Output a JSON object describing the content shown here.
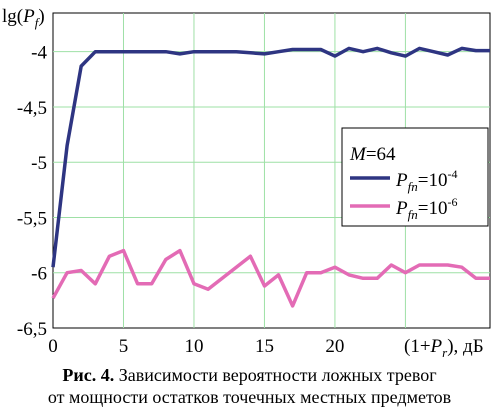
{
  "chart_data": {
    "type": "line",
    "ylabel": "lg(Pf)",
    "xlabel": "(1+Pr), дБ",
    "xlim": [
      0,
      31
    ],
    "ylim": [
      -6.5,
      -3.65
    ],
    "xticks": [
      "0",
      "5",
      "10",
      "15",
      "20"
    ],
    "yticks": [
      "-4",
      "-4,5",
      "-5",
      "-5,5",
      "-6",
      "-6,5"
    ],
    "grid": true,
    "legend": {
      "placement": "center-right",
      "title": "M=64"
    },
    "series": [
      {
        "name": "Pfn=10^-4",
        "color": "#2e3582",
        "x": [
          0,
          1,
          2,
          3,
          4,
          5,
          6,
          7,
          8,
          9,
          10,
          11,
          12,
          13,
          14,
          15,
          16,
          17,
          18,
          19,
          20,
          21,
          22,
          23,
          24,
          25,
          26,
          27,
          28,
          29,
          30,
          31
        ],
        "y": [
          -5.95,
          -4.85,
          -4.13,
          -4.0,
          -4.0,
          -4.0,
          -4.0,
          -4.0,
          -4.0,
          -4.02,
          -4.0,
          -4.0,
          -4.0,
          -4.0,
          -4.01,
          -4.02,
          -4.0,
          -3.98,
          -3.98,
          -3.98,
          -4.04,
          -3.97,
          -4.0,
          -3.97,
          -4.01,
          -4.04,
          -3.97,
          -4.0,
          -4.03,
          -3.97,
          -3.99,
          -3.99
        ]
      },
      {
        "name": "Pfn=10^-6",
        "color": "#e36bb5",
        "x": [
          0,
          1,
          2,
          3,
          4,
          5,
          6,
          7,
          8,
          9,
          10,
          11,
          12,
          13,
          14,
          15,
          16,
          17,
          18,
          19,
          20,
          21,
          22,
          23,
          24,
          25,
          26,
          27,
          28,
          29,
          30,
          31
        ],
        "y": [
          -6.23,
          -6.0,
          -5.98,
          -6.1,
          -5.85,
          -5.8,
          -6.1,
          -6.1,
          -5.88,
          -5.8,
          -6.1,
          -6.15,
          -6.05,
          -5.95,
          -5.85,
          -6.12,
          -6.02,
          -6.3,
          -6.0,
          -6.0,
          -5.95,
          -6.02,
          -6.05,
          -6.05,
          -5.93,
          -6.0,
          -5.93,
          -5.93,
          -5.93,
          -5.95,
          -6.05,
          -6.05
        ]
      }
    ]
  },
  "legend": {
    "title_var": "M",
    "title_val": "=64",
    "entries": [
      {
        "var": "P",
        "sub": "fn",
        "text": "=10",
        "exp": "-4",
        "color": "#2e3582"
      },
      {
        "var": "P",
        "sub": "fn",
        "text": "=10",
        "exp": "-6",
        "color": "#e36bb5"
      }
    ]
  },
  "axes": {
    "y_label": {
      "prefix": "lg(",
      "var": "P",
      "sub": "f",
      "suffix": ")"
    },
    "x_label": {
      "prefix": "(1+",
      "var": "P",
      "sub": "r",
      "suffix": "), дБ"
    }
  },
  "caption": {
    "label": "Рис. 4.",
    "line1": " Зависимости вероятности ложных тревог",
    "line2": "от мощности остатков точечных местных предметов"
  },
  "colors": {
    "grid": "#9ee0a6",
    "frame": "#000000"
  }
}
